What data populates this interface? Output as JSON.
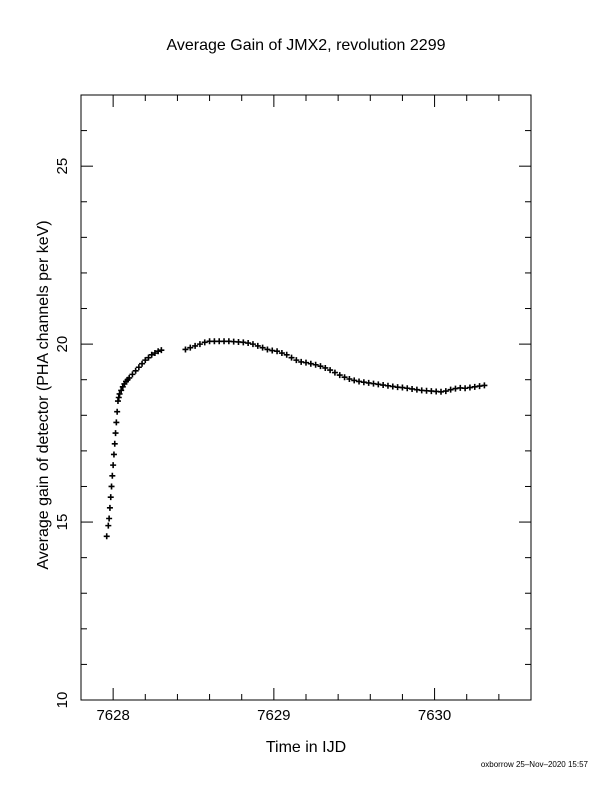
{
  "chart_data": {
    "type": "scatter",
    "title": "Average Gain of JMX2, revolution 2299",
    "xlabel": "Time in IJD",
    "ylabel": "Average gain of detector (PHA channels per keV)",
    "xlim": [
      7627.8,
      7630.6
    ],
    "ylim": [
      10,
      27
    ],
    "xticks": [
      7628,
      7629,
      7630
    ],
    "yticks": [
      10,
      15,
      20,
      25
    ],
    "marker": "plus",
    "series": [
      {
        "x": [
          7627.96,
          7627.97,
          7627.975,
          7627.98,
          7627.985,
          7627.99,
          7627.995,
          7628.0,
          7628.005,
          7628.01,
          7628.015,
          7628.02,
          7628.025,
          7628.03,
          7628.035,
          7628.04,
          7628.05,
          7628.06,
          7628.07,
          7628.08,
          7628.09,
          7628.1,
          7628.12,
          7628.14,
          7628.16,
          7628.18,
          7628.2,
          7628.22,
          7628.24,
          7628.26,
          7628.28,
          7628.3,
          7628.45,
          7628.48,
          7628.51,
          7628.54,
          7628.57,
          7628.6,
          7628.63,
          7628.66,
          7628.69,
          7628.72,
          7628.75,
          7628.78,
          7628.81,
          7628.84,
          7628.87,
          7628.9,
          7628.93,
          7628.96,
          7628.99,
          7629.02,
          7629.05,
          7629.08,
          7629.11,
          7629.14,
          7629.17,
          7629.2,
          7629.23,
          7629.26,
          7629.29,
          7629.32,
          7629.35,
          7629.38,
          7629.41,
          7629.44,
          7629.47,
          7629.5,
          7629.53,
          7629.56,
          7629.59,
          7629.62,
          7629.65,
          7629.68,
          7629.71,
          7629.74,
          7629.77,
          7629.8,
          7629.83,
          7629.86,
          7629.89,
          7629.92,
          7629.95,
          7629.98,
          7630.01,
          7630.04,
          7630.07,
          7630.1,
          7630.13,
          7630.16,
          7630.19,
          7630.22,
          7630.25,
          7630.28,
          7630.31
        ],
        "y": [
          14.6,
          14.9,
          15.1,
          15.4,
          15.7,
          16.0,
          16.3,
          16.6,
          16.9,
          17.2,
          17.5,
          17.8,
          18.1,
          18.4,
          18.5,
          18.6,
          18.7,
          18.8,
          18.88,
          18.95,
          19.0,
          19.05,
          19.15,
          19.25,
          19.35,
          19.45,
          19.55,
          19.62,
          19.7,
          19.75,
          19.8,
          19.83,
          19.85,
          19.9,
          19.95,
          20.0,
          20.05,
          20.08,
          20.08,
          20.08,
          20.08,
          20.08,
          20.07,
          20.06,
          20.05,
          20.03,
          20.0,
          19.95,
          19.9,
          19.85,
          19.82,
          19.8,
          19.75,
          19.7,
          19.62,
          19.55,
          19.5,
          19.48,
          19.45,
          19.42,
          19.38,
          19.33,
          19.27,
          19.2,
          19.13,
          19.07,
          19.02,
          18.98,
          18.95,
          18.93,
          18.91,
          18.89,
          18.87,
          18.85,
          18.83,
          18.81,
          18.79,
          18.78,
          18.76,
          18.74,
          18.72,
          18.7,
          18.69,
          18.68,
          18.67,
          18.66,
          18.68,
          18.72,
          18.75,
          18.77,
          18.76,
          18.78,
          18.8,
          18.82,
          18.84
        ]
      }
    ]
  },
  "footer": {
    "credit": "oxborrow 25–Nov–2020 15:57"
  }
}
